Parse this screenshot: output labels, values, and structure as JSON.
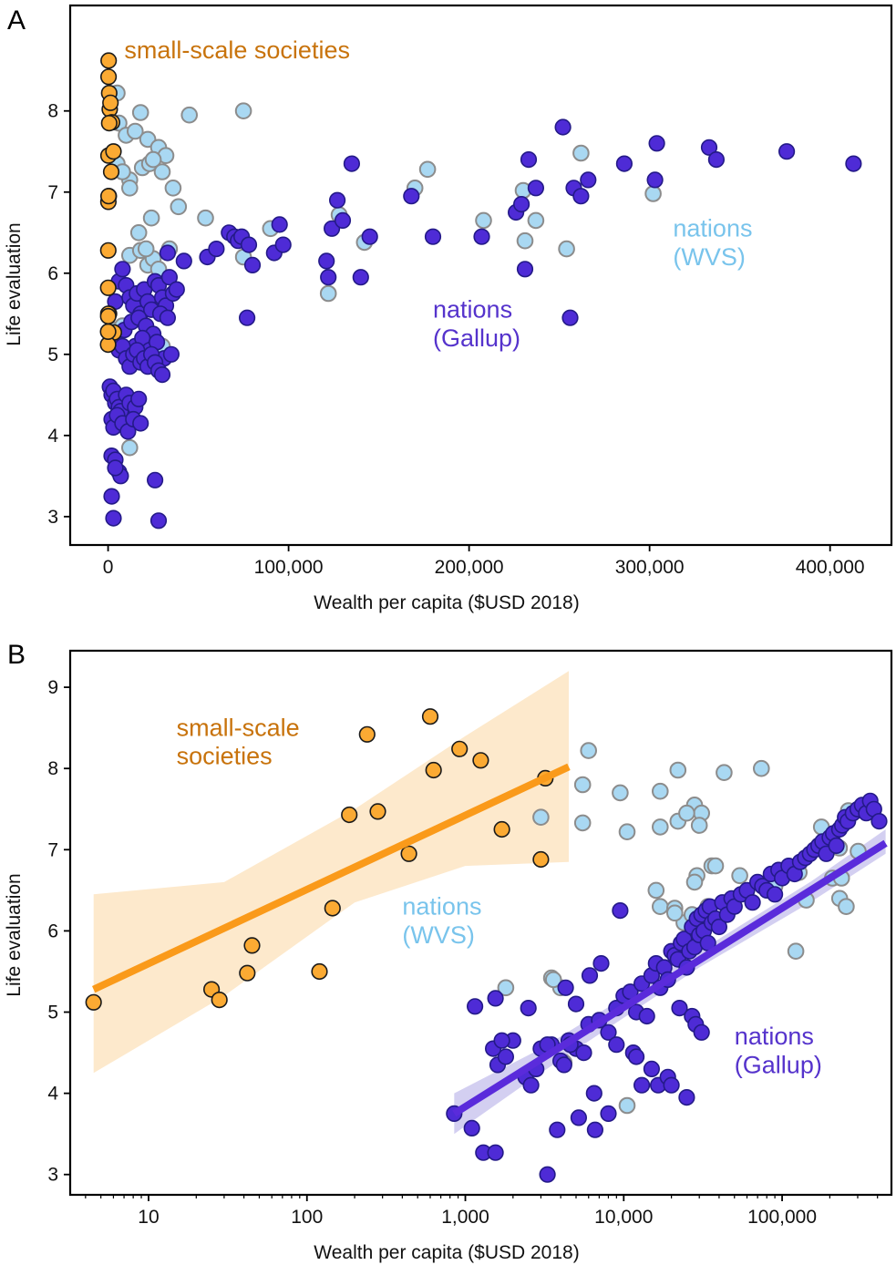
{
  "colors": {
    "sss_fill": "#FBAA33",
    "sss_stroke": "#1a1a1a",
    "sss_line": "#FA9A1A",
    "sss_band": "#FDE9CC",
    "sss_label": "#C8730C",
    "wvs_fill": "#A9D8F2",
    "wvs_stroke": "#8C8C8C",
    "wvs_label": "#79C4EC",
    "gallup_fill": "#4E2BD6",
    "gallup_stroke": "#241A88",
    "gallup_line": "#5A2BDB",
    "gallup_band": "#C8C3EE",
    "gallup_label": "#5533CC"
  },
  "chart_data": [
    {
      "panel": "A",
      "type": "scatter",
      "xlabel": "Wealth per capita ($USD 2018)",
      "ylabel": "Life evaluation",
      "xscale": "linear",
      "xlim": [
        -21000,
        434000
      ],
      "ylim": [
        2.65,
        9.3
      ],
      "xticks": [
        0,
        100000,
        200000,
        300000,
        400000
      ],
      "xtick_labels": [
        "0",
        "100,000",
        "200,000",
        "300,000",
        "400,000"
      ],
      "yticks": [
        3,
        4,
        5,
        6,
        7,
        8
      ],
      "yticks_labels": [
        "3",
        "4",
        "5",
        "6",
        "7",
        "8"
      ],
      "annotations": [
        {
          "text": "small-scale societies",
          "series": "sss",
          "x": 9000,
          "y": 8.65
        },
        {
          "text": "nations",
          "series": "wvs",
          "x": 313000,
          "y": 6.45
        },
        {
          "text": "(WVS)",
          "series": "wvs",
          "x": 313000,
          "y": 6.1
        },
        {
          "text": "nations",
          "series": "gallup",
          "x": 180000,
          "y": 5.45
        },
        {
          "text": "(Gallup)",
          "series": "gallup",
          "x": 180000,
          "y": 5.1
        }
      ],
      "series": [
        {
          "name": "nations (WVS)",
          "key": "wvs",
          "x": [
            5000,
            6000,
            10000,
            15000,
            18000,
            22000,
            28000,
            32000,
            45000,
            75000,
            12000,
            19000,
            23000,
            25000,
            30000,
            36000,
            5000,
            8000,
            12000,
            17000,
            24000,
            39000,
            54000,
            90000,
            128000,
            142000,
            170000,
            177000,
            208000,
            230000,
            237000,
            262000,
            302000,
            12000,
            18000,
            22000,
            25000,
            28000,
            34000,
            21000,
            75000,
            122000,
            231000,
            254000,
            4000,
            8000,
            12000,
            30000
          ],
          "y": [
            8.22,
            7.85,
            7.7,
            7.75,
            7.98,
            7.65,
            7.55,
            7.45,
            7.95,
            8.0,
            7.15,
            7.3,
            7.35,
            7.4,
            7.25,
            7.05,
            7.35,
            7.25,
            7.05,
            6.5,
            6.68,
            6.82,
            6.68,
            6.55,
            6.72,
            6.38,
            7.05,
            7.28,
            6.65,
            7.02,
            6.65,
            7.48,
            6.98,
            6.22,
            6.28,
            6.1,
            6.18,
            6.05,
            6.3,
            6.3,
            6.2,
            5.75,
            6.4,
            6.3,
            5.3,
            5.35,
            3.85,
            5.1
          ]
        },
        {
          "name": "nations (Gallup)",
          "key": "gallup",
          "x": [
            4000,
            6000,
            8000,
            10000,
            12000,
            14000,
            16000,
            18000,
            20000,
            22000,
            24000,
            26000,
            28000,
            30000,
            32000,
            34000,
            36000,
            38000,
            9000,
            13000,
            17000,
            21000,
            25000,
            29000,
            33000,
            11000,
            15000,
            19000,
            23000,
            27000,
            31000,
            35000,
            2000,
            4000,
            6000,
            8000,
            10000,
            12000,
            14000,
            16000,
            18000,
            20000,
            22000,
            24000,
            26000,
            28000,
            1000,
            2000,
            3000,
            4000,
            5000,
            6000,
            7000,
            10000,
            12000,
            15000,
            17000,
            2000,
            3000,
            5000,
            8000,
            11000,
            14000,
            18000,
            2000,
            4000,
            6000,
            7000,
            2000,
            4000,
            3000,
            28000,
            26000,
            30000,
            33000,
            42000,
            55000,
            60000,
            67000,
            70000,
            72000,
            74000,
            78000,
            80000,
            92000,
            95000,
            97000,
            121000,
            122000,
            124000,
            127000,
            135000,
            140000,
            145000,
            168000,
            180000,
            207000,
            226000,
            229000,
            231000,
            233000,
            237000,
            252000,
            258000,
            262000,
            266000,
            286000,
            303000,
            304000,
            333000,
            337000,
            376000,
            413000,
            77000,
            256000,
            130000
          ],
          "y": [
            5.65,
            5.9,
            6.05,
            5.85,
            5.7,
            5.6,
            5.75,
            5.5,
            5.8,
            5.65,
            5.55,
            5.9,
            5.85,
            5.7,
            5.6,
            5.95,
            5.75,
            5.8,
            5.3,
            5.4,
            5.45,
            5.35,
            5.25,
            5.5,
            5.45,
            5.0,
            5.1,
            5.2,
            5.05,
            5.15,
            4.95,
            5.0,
            5.2,
            5.15,
            5.05,
            5.1,
            4.95,
            4.85,
            5.0,
            5.05,
            4.9,
            4.95,
            4.85,
            5.0,
            4.9,
            4.8,
            4.6,
            4.5,
            4.55,
            4.4,
            4.45,
            4.35,
            4.3,
            4.5,
            4.4,
            4.35,
            4.45,
            4.2,
            4.1,
            4.25,
            4.15,
            4.05,
            4.2,
            4.15,
            3.75,
            3.7,
            3.55,
            3.5,
            3.25,
            3.6,
            2.98,
            2.95,
            3.45,
            4.75,
            6.25,
            6.15,
            6.2,
            6.3,
            6.5,
            6.45,
            6.4,
            6.45,
            6.35,
            6.1,
            6.25,
            6.6,
            6.35,
            6.15,
            5.95,
            6.55,
            6.9,
            7.35,
            5.95,
            6.45,
            6.95,
            6.45,
            6.45,
            6.75,
            6.85,
            6.05,
            7.4,
            7.05,
            7.8,
            7.05,
            6.95,
            7.15,
            7.35,
            7.15,
            7.6,
            7.55,
            7.4,
            7.5,
            7.35,
            5.45,
            5.45,
            6.65
          ]
        },
        {
          "name": "small-scale societies",
          "key": "sss",
          "x": [
            300,
            250,
            600,
            900,
            200,
            1700,
            1300,
            2200,
            400,
            180,
            500,
            3200,
            4,
            25,
            95,
            120,
            45,
            250,
            3000,
            40,
            600
          ],
          "y": [
            8.62,
            8.42,
            8.22,
            8.02,
            7.45,
            7.25,
            8.1,
            7.86,
            6.95,
            6.88,
            5.5,
            5.27,
            5.12,
            5.28,
            6.28,
            5.5,
            5.82,
            6.95,
            7.5,
            5.47,
            7.85
          ]
        }
      ],
      "fit": []
    },
    {
      "panel": "B",
      "type": "scatter",
      "xlabel": "Wealth per capita ($USD 2018)",
      "ylabel": "Life evaluation",
      "xscale": "log",
      "xlim": [
        3.2,
        490000
      ],
      "ylim": [
        2.75,
        9.45
      ],
      "xticks": [
        10,
        100,
        1000,
        10000,
        100000
      ],
      "xtick_labels": [
        "10",
        "100",
        "1,000",
        "10,000",
        "100,000"
      ],
      "yticks": [
        3,
        4,
        5,
        6,
        7,
        8,
        9
      ],
      "yticks_labels": [
        "3",
        "4",
        "5",
        "6",
        "7",
        "8",
        "9"
      ],
      "annotations": [
        {
          "text": "small-scale",
          "series": "sss",
          "x": 15,
          "y": 8.4
        },
        {
          "text": "societies",
          "series": "sss",
          "x": 15,
          "y": 8.05
        },
        {
          "text": "nations",
          "series": "wvs",
          "x": 400,
          "y": 6.2
        },
        {
          "text": "(WVS)",
          "series": "wvs",
          "x": 400,
          "y": 5.85
        },
        {
          "text": "nations",
          "series": "gallup",
          "x": 50000,
          "y": 4.6
        },
        {
          "text": "(Gallup)",
          "series": "gallup",
          "x": 50000,
          "y": 4.25
        }
      ],
      "series": [
        {
          "name": "nations (WVS)",
          "key": "wvs",
          "x": [
            6000,
            5500,
            9500,
            10500,
            17000,
            22000,
            28000,
            31000,
            43000,
            74000,
            5500,
            17000,
            22000,
            25000,
            30000,
            36000,
            3000,
            3500,
            4000,
            16000,
            29000,
            38000,
            54000,
            17000,
            21000,
            24000,
            27000,
            30000,
            34000,
            90000,
            128000,
            142000,
            170000,
            177000,
            208000,
            230000,
            237000,
            262000,
            302000,
            1800,
            3600,
            4200,
            10500,
            21000,
            28000,
            122000,
            231000,
            254000
          ],
          "y": [
            8.22,
            7.8,
            7.7,
            7.22,
            7.72,
            7.98,
            7.55,
            7.45,
            7.95,
            8.0,
            7.33,
            7.28,
            7.35,
            7.45,
            7.3,
            6.8,
            7.4,
            5.42,
            5.3,
            6.5,
            6.68,
            6.8,
            6.68,
            6.3,
            6.28,
            6.1,
            6.2,
            6.05,
            6.3,
            6.55,
            6.72,
            6.38,
            7.05,
            7.28,
            6.65,
            7.02,
            6.65,
            7.48,
            6.98,
            5.3,
            5.4,
            4.38,
            3.85,
            6.22,
            6.6,
            5.75,
            6.4,
            6.3
          ]
        },
        {
          "name": "nations (Gallup)",
          "key": "gallup",
          "x": [
            850,
            1100,
            1300,
            1600,
            1800,
            1500,
            2000,
            2400,
            2800,
            3000,
            3500,
            4000,
            4500,
            5000,
            6000,
            7000,
            8000,
            9000,
            10000,
            11000,
            12000,
            13000,
            14000,
            15000,
            16000,
            17000,
            18000,
            19000,
            20000,
            21000,
            22000,
            23000,
            24000,
            25000,
            26000,
            27000,
            28000,
            29000,
            30000,
            31000,
            32000,
            33000,
            34000,
            35000,
            36000,
            38000,
            40000,
            42000,
            45000,
            48000,
            50000,
            55000,
            60000,
            65000,
            70000,
            75000,
            80000,
            85000,
            90000,
            95000,
            100000,
            110000,
            120000,
            130000,
            140000,
            150000,
            160000,
            170000,
            180000,
            190000,
            200000,
            210000,
            220000,
            230000,
            240000,
            250000,
            260000,
            280000,
            300000,
            320000,
            340000,
            360000,
            380000,
            410000,
            1150,
            1550,
            2500,
            3300,
            4600,
            6100,
            7200,
            9500,
            11500,
            13000,
            16500,
            19000,
            22500,
            27000,
            28500,
            31000,
            4200,
            5200,
            6600,
            8000,
            12000,
            15000,
            20000,
            25000,
            1700,
            2600,
            3800,
            5000,
            6500,
            9000,
            1550,
            3300,
            5600,
            4300
          ],
          "y": [
            3.75,
            3.57,
            3.27,
            4.35,
            4.45,
            4.55,
            4.65,
            4.2,
            4.3,
            4.55,
            4.6,
            4.4,
            4.65,
            4.55,
            4.85,
            4.9,
            4.75,
            5.05,
            5.2,
            5.25,
            5.0,
            5.35,
            4.95,
            5.45,
            5.6,
            5.3,
            5.55,
            5.4,
            5.75,
            5.7,
            5.65,
            5.85,
            5.9,
            5.55,
            5.75,
            6.05,
            5.8,
            6.15,
            5.95,
            6.2,
            6.0,
            6.25,
            5.85,
            6.3,
            6.1,
            6.15,
            6.05,
            6.35,
            6.2,
            6.4,
            6.3,
            6.45,
            6.5,
            6.35,
            6.6,
            6.55,
            6.5,
            6.7,
            6.45,
            6.75,
            6.65,
            6.8,
            6.7,
            6.85,
            6.9,
            6.95,
            7.0,
            7.05,
            7.1,
            6.95,
            7.15,
            7.2,
            7.05,
            7.25,
            7.3,
            7.4,
            7.35,
            7.45,
            7.5,
            7.55,
            7.45,
            7.6,
            7.5,
            7.35,
            5.07,
            5.17,
            5.05,
            4.6,
            4.6,
            5.45,
            5.6,
            6.25,
            4.5,
            4.1,
            4.1,
            4.2,
            5.05,
            4.95,
            4.85,
            4.75,
            4.35,
            3.7,
            3.55,
            3.75,
            4.45,
            4.3,
            4.1,
            3.95,
            4.65,
            4.1,
            3.55,
            5.1,
            4.0,
            4.6,
            3.27,
            3.0,
            4.5,
            5.3
          ]
        },
        {
          "name": "small-scale societies",
          "key": "sss",
          "x": [
            4.5,
            25,
            28,
            42,
            45,
            120,
            145,
            185,
            240,
            280,
            440,
            600,
            630,
            920,
            1250,
            1700,
            3200,
            3000
          ],
          "y": [
            5.12,
            5.28,
            5.15,
            5.48,
            5.82,
            5.5,
            6.28,
            7.43,
            8.42,
            7.47,
            6.95,
            8.64,
            7.98,
            8.24,
            8.1,
            7.25,
            7.88,
            6.88
          ]
        }
      ],
      "fit": [
        {
          "series": "sss",
          "x": [
            4.5,
            4500
          ],
          "y": [
            5.28,
            8.02
          ],
          "band_x": [
            4.5,
            30,
            200,
            1000,
            4500
          ],
          "band_lo": [
            4.25,
            5.2,
            6.35,
            6.8,
            6.85
          ],
          "band_hi": [
            6.45,
            6.6,
            7.5,
            8.4,
            9.2
          ]
        },
        {
          "series": "gallup",
          "x": [
            850,
            450000
          ],
          "y": [
            3.75,
            7.08
          ],
          "band_x": [
            850,
            3000,
            30000,
            150000,
            450000
          ],
          "band_lo": [
            3.5,
            4.25,
            5.55,
            6.35,
            6.95
          ],
          "band_hi": [
            4.0,
            4.55,
            5.75,
            6.6,
            7.25
          ]
        }
      ]
    }
  ],
  "panels": [
    {
      "letter": "A",
      "xlabel": "Wealth per capita ($USD 2018)",
      "ylabel": "Life evaluation"
    },
    {
      "letter": "B",
      "xlabel": "Wealth per capita ($USD 2018)",
      "ylabel": "Life evaluation"
    }
  ]
}
